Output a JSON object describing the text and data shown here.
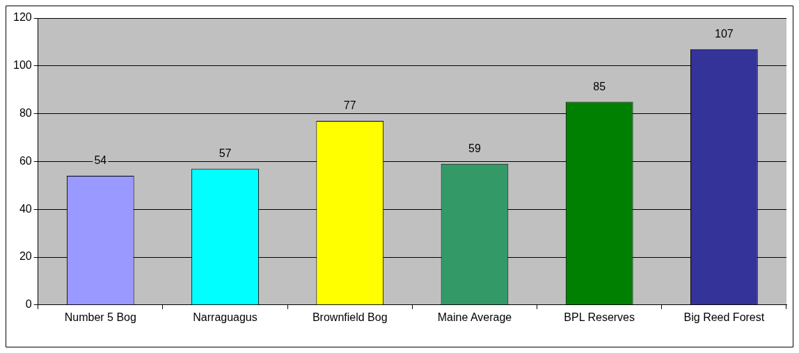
{
  "chart_data": {
    "type": "bar",
    "categories": [
      "Number 5 Bog",
      "Narraguagus",
      "Brownfield Bog",
      "Maine Average",
      "BPL Reserves",
      "Big Reed Forest"
    ],
    "values": [
      54,
      57,
      77,
      59,
      85,
      107
    ],
    "colors": [
      "#9999ff",
      "#00ffff",
      "#ffff00",
      "#339966",
      "#008000",
      "#333399"
    ],
    "ylim": [
      0,
      120
    ],
    "yticks": [
      0,
      20,
      40,
      60,
      80,
      100,
      120
    ],
    "grid": "y",
    "data_labels": true
  }
}
